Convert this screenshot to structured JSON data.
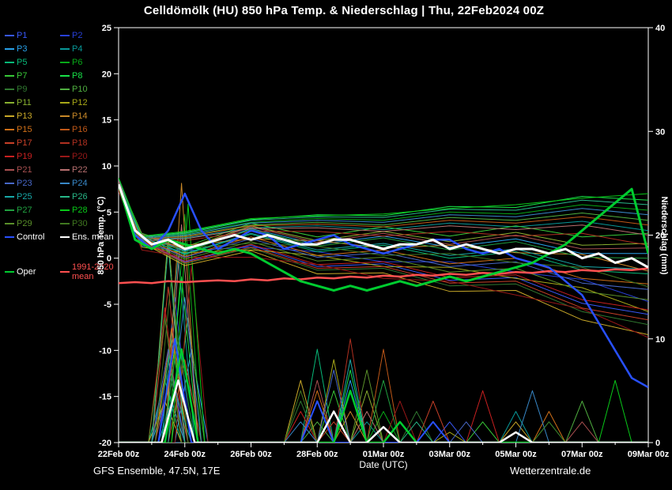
{
  "title": "Celldömölk  (HU)  850 hPa Temp. & Niederschlag | Thu, 22Feb2024 00Z",
  "footer": {
    "model_info": "GFS Ensemble, 47.5N, 17E",
    "credit": "Wetterzentrale.de"
  },
  "axes": {
    "x": {
      "label": "Date (UTC)",
      "tick_days": [
        0,
        2,
        4,
        6,
        8,
        10,
        12,
        14,
        16
      ],
      "tick_labels": [
        "22Feb 00z",
        "24Feb 00z",
        "26Feb 00z",
        "28Feb 00z",
        "01Mar 00z",
        "03Mar 00z",
        "05Mar 00z",
        "07Mar 00z",
        "09Mar 00z"
      ],
      "minor_days": [
        1,
        3,
        5,
        7,
        9,
        11,
        13,
        15
      ],
      "range_days": [
        0,
        16
      ]
    },
    "y_left": {
      "label": "850 hPa Temp. (°C)",
      "min": -20,
      "max": 25,
      "ticks": [
        -20,
        -15,
        -10,
        -5,
        0,
        5,
        10,
        15,
        20,
        25
      ]
    },
    "y_right": {
      "label": "Niederschlag (mm)",
      "min": 0,
      "max": 40,
      "ticks": [
        0,
        10,
        20,
        30,
        40
      ]
    }
  },
  "chart_data": {
    "type": "line",
    "x_unit": "days since 22Feb2024 00Z",
    "temp_unit": "°C",
    "precip_unit": "mm",
    "x_members_days": [
      0,
      0.7,
      2,
      4,
      6,
      8,
      10,
      12,
      14,
      16
    ],
    "x_key_days": [
      0,
      0.5,
      1,
      1.5,
      2,
      2.5,
      3,
      3.5,
      4,
      4.5,
      5,
      5.5,
      6,
      6.5,
      7,
      7.5,
      8,
      8.5,
      9,
      9.5,
      10,
      10.5,
      11,
      11.5,
      12,
      12.5,
      13,
      13.5,
      14,
      14.5,
      15,
      15.5,
      16
    ],
    "members": [
      {
        "label": "P1",
        "color": "#3858f8",
        "temp": [
          7.5,
          1.9,
          -0.4,
          1.4,
          -0.9,
          -0.6,
          -2.4,
          -2.1,
          -4.9,
          -6.1
        ],
        "precip_spikes": [
          [
            1.5,
            8
          ],
          [
            6,
            4
          ],
          [
            10,
            2
          ]
        ]
      },
      {
        "label": "P2",
        "color": "#2840d8",
        "temp": [
          7.7,
          1.3,
          0.8,
          1.2,
          0.7,
          -0.4,
          -0.4,
          -1.5,
          -2.3,
          -4.7
        ],
        "precip_spikes": [
          [
            1.7,
            14
          ],
          [
            6.5,
            3
          ]
        ]
      },
      {
        "label": "P3",
        "color": "#28a0e8",
        "temp": [
          8.1,
          2.5,
          0.8,
          3.2,
          1.5,
          2.4,
          1.2,
          2.1,
          0.5,
          0.5
        ],
        "precip_spikes": [
          [
            1.5,
            5
          ],
          [
            2.2,
            9
          ],
          [
            7,
            6
          ]
        ]
      },
      {
        "label": "P4",
        "color": "#089898",
        "temp": [
          8.4,
          2.0,
          2.2,
          3.3,
          3.5,
          3.1,
          3.8,
          3.4,
          4.0,
          3.0
        ],
        "precip_spikes": [
          [
            1.8,
            18
          ],
          [
            7.5,
            2
          ],
          [
            12,
            3
          ]
        ]
      },
      {
        "label": "P5",
        "color": "#08b878",
        "temp": [
          7.9,
          2.3,
          0.4,
          2.6,
          0.7,
          1.4,
          0.0,
          0.7,
          -1.3,
          -1.7
        ],
        "precip_spikes": [
          [
            1.4,
            6
          ],
          [
            6,
            9
          ],
          [
            13,
            2
          ]
        ]
      },
      {
        "label": "P6",
        "color": "#08a818",
        "temp": [
          8.6,
          2.2,
          2.6,
          3.9,
          4.3,
          4.1,
          5.0,
          4.8,
          5.8,
          5.2
        ],
        "precip_spikes": [
          [
            2,
            22
          ],
          [
            8,
            3
          ]
        ]
      },
      {
        "label": "P7",
        "color": "#38c838",
        "temp": [
          8.3,
          2.7,
          1.2,
          3.8,
          2.3,
          3.4,
          2.4,
          3.5,
          2.3,
          2.7
        ],
        "precip_spikes": [
          [
            1.6,
            10
          ],
          [
            6.5,
            5
          ],
          [
            11,
            2
          ]
        ]
      },
      {
        "label": "P8",
        "color": "#18e048",
        "temp": [
          8.7,
          2.3,
          2.8,
          4.2,
          4.7,
          4.6,
          5.6,
          5.5,
          6.7,
          6.3
        ],
        "precip_spikes": [
          [
            1.9,
            16
          ],
          [
            7,
            7
          ]
        ]
      },
      {
        "label": "P9",
        "color": "#307830",
        "temp": [
          7.4,
          1.8,
          -0.6,
          1.1,
          -1.3,
          -1.1,
          -3.0,
          -2.8,
          -5.8,
          -7.2
        ],
        "precip_spikes": [
          [
            1.5,
            7
          ],
          [
            5.5,
            4
          ],
          [
            9,
            3
          ]
        ]
      },
      {
        "label": "P10",
        "color": "#50b040",
        "temp": [
          8.5,
          2.1,
          2.4,
          3.6,
          3.9,
          3.6,
          4.4,
          4.1,
          4.9,
          4.1
        ],
        "precip_spikes": [
          [
            2.1,
            12
          ],
          [
            6,
            2
          ],
          [
            14,
            4
          ]
        ]
      },
      {
        "label": "P11",
        "color": "#88b030",
        "temp": [
          8.2,
          2.6,
          1.0,
          3.5,
          1.9,
          2.9,
          1.8,
          2.8,
          1.4,
          1.6
        ],
        "precip_spikes": [
          [
            1.5,
            20
          ],
          [
            7.5,
            5
          ]
        ]
      },
      {
        "label": "P12",
        "color": "#a8a818",
        "temp": [
          7.6,
          1.2,
          0.6,
          0.9,
          0.3,
          -0.9,
          -1.0,
          -2.2,
          -3.2,
          -5.8
        ],
        "precip_spikes": [
          [
            1.7,
            9
          ],
          [
            6.5,
            8
          ],
          [
            10,
            1
          ]
        ]
      },
      {
        "label": "P13",
        "color": "#c8a828",
        "temp": [
          7.3,
          1.7,
          -0.8,
          0.8,
          -1.7,
          -1.6,
          -3.6,
          -3.5,
          -6.7,
          -8.3
        ],
        "precip_spikes": [
          [
            1.4,
            4
          ],
          [
            5.5,
            6
          ],
          [
            12,
            2
          ]
        ]
      },
      {
        "label": "P14",
        "color": "#c88828",
        "temp": [
          8.0,
          1.6,
          1.4,
          2.1,
          1.9,
          1.1,
          1.4,
          0.6,
          0.4,
          -1.4
        ],
        "precip_spikes": [
          [
            1.9,
            25
          ],
          [
            7,
            3
          ]
        ]
      },
      {
        "label": "P15",
        "color": "#d07018",
        "temp": [
          7.8,
          2.2,
          0.2,
          2.3,
          0.3,
          0.9,
          -0.6,
          0.0,
          -2.2,
          -2.8
        ],
        "precip_spikes": [
          [
            1.6,
            11
          ],
          [
            6,
            5
          ],
          [
            13,
            3
          ]
        ]
      },
      {
        "label": "P16",
        "color": "#c05818",
        "temp": [
          8.5,
          2.1,
          2.3,
          3.5,
          3.7,
          3.4,
          4.1,
          3.8,
          4.5,
          3.6
        ],
        "precip_spikes": [
          [
            2,
            8
          ],
          [
            8,
            9
          ]
        ]
      },
      {
        "label": "P17",
        "color": "#c84028",
        "temp": [
          7.4,
          1.8,
          -0.5,
          1.2,
          -1.1,
          -0.9,
          -2.7,
          -2.5,
          -5.4,
          -6.7
        ],
        "precip_spikes": [
          [
            1.5,
            15
          ],
          [
            6.5,
            2
          ],
          [
            9.5,
            4
          ]
        ]
      },
      {
        "label": "P18",
        "color": "#b03020",
        "temp": [
          8.3,
          1.9,
          1.9,
          2.9,
          2.9,
          2.4,
          2.9,
          2.4,
          2.7,
          1.4
        ],
        "precip_spikes": [
          [
            1.8,
            6
          ],
          [
            7,
            10
          ]
        ]
      },
      {
        "label": "P19",
        "color": "#c82020",
        "temp": [
          7.5,
          1.9,
          -0.3,
          1.5,
          -0.7,
          -0.4,
          -2.1,
          -1.8,
          -4.5,
          -5.6
        ],
        "precip_spikes": [
          [
            1.4,
            13
          ],
          [
            5.5,
            3
          ],
          [
            11,
            5
          ]
        ]
      },
      {
        "label": "P20",
        "color": "#981818",
        "temp": [
          7.3,
          0.9,
          0.1,
          0.1,
          -0.7,
          -2.2,
          -2.5,
          -4.0,
          -5.5,
          -8.6
        ],
        "precip_spikes": [
          [
            2.2,
            17
          ],
          [
            8.5,
            4
          ]
        ]
      },
      {
        "label": "P21",
        "color": "#a85050",
        "temp": [
          8.2,
          2.6,
          0.9,
          3.4,
          1.7,
          2.7,
          1.5,
          2.5,
          1.0,
          1.1
        ],
        "precip_spikes": [
          [
            1.6,
            7
          ],
          [
            6,
            6
          ],
          [
            14,
            2
          ]
        ]
      },
      {
        "label": "P22",
        "color": "#b87070",
        "temp": [
          8.4,
          2.0,
          2.1,
          3.2,
          3.3,
          2.9,
          3.5,
          3.1,
          3.6,
          2.5
        ],
        "precip_spikes": [
          [
            1.9,
            21
          ],
          [
            7.5,
            3
          ]
        ]
      },
      {
        "label": "P23",
        "color": "#4868c8",
        "temp": [
          7.7,
          2.1,
          0.1,
          2.1,
          0.1,
          0.6,
          -0.9,
          -0.4,
          -2.7,
          -3.4
        ],
        "precip_spikes": [
          [
            1.5,
            9
          ],
          [
            6.5,
            7
          ],
          [
            10.5,
            2
          ]
        ]
      },
      {
        "label": "P24",
        "color": "#3888c8",
        "temp": [
          8.6,
          2.2,
          2.5,
          3.8,
          4.1,
          3.9,
          4.7,
          4.5,
          5.4,
          4.7
        ],
        "precip_spikes": [
          [
            2,
            14
          ],
          [
            5.5,
            2
          ],
          [
            12.5,
            5
          ]
        ]
      },
      {
        "label": "P25",
        "color": "#18a8a8",
        "temp": [
          7.9,
          2.3,
          0.5,
          2.7,
          0.9,
          1.6,
          0.3,
          1.0,
          -0.9,
          -1.2
        ],
        "precip_spikes": [
          [
            1.7,
            5
          ],
          [
            7,
            8
          ]
        ]
      },
      {
        "label": "P26",
        "color": "#28b888",
        "temp": [
          8.7,
          2.3,
          2.7,
          4.1,
          4.5,
          4.4,
          5.3,
          5.2,
          6.3,
          5.8
        ],
        "precip_spikes": [
          [
            1.5,
            19
          ],
          [
            6,
            4
          ],
          [
            9,
            2
          ]
        ]
      },
      {
        "label": "P27",
        "color": "#20a040",
        "temp": [
          8.1,
          2.5,
          0.7,
          3.1,
          1.3,
          2.2,
          0.9,
          1.8,
          0.1,
          0.0
        ],
        "precip_spikes": [
          [
            1.8,
            10
          ],
          [
            8,
            6
          ]
        ]
      },
      {
        "label": "P28",
        "color": "#08c818",
        "temp": [
          8.7,
          2.4,
          2.9,
          4.3,
          4.6,
          4.8,
          5.4,
          5.8,
          6.5,
          7.0
        ],
        "precip_spikes": [
          [
            2.1,
            23
          ],
          [
            6.5,
            3
          ],
          [
            15,
            6
          ]
        ]
      },
      {
        "label": "P29",
        "color": "#5a902a",
        "temp": [
          7.6,
          2.0,
          -0.1,
          1.8,
          -0.3,
          0.1,
          -1.5,
          -1.1,
          -3.6,
          -4.5
        ],
        "precip_spikes": [
          [
            1.4,
            12
          ],
          [
            7.5,
            7
          ]
        ]
      },
      {
        "label": "P30",
        "color": "#407820",
        "temp": [
          7.8,
          1.4,
          1.1,
          1.6,
          1.3,
          0.3,
          0.5,
          -0.5,
          -1.0,
          -3.1
        ],
        "precip_spikes": [
          [
            1.6,
            16
          ],
          [
            5.5,
            5
          ],
          [
            13,
            2
          ]
        ]
      }
    ],
    "key_series": [
      {
        "id": "clim",
        "label": "1991-2020 mean",
        "color": "#ff5050",
        "width": 2.5,
        "temp": [
          -2.7,
          -2.6,
          -2.7,
          -2.5,
          -2.6,
          -2.5,
          -2.4,
          -2.5,
          -2.3,
          -2.4,
          -2.2,
          -2.3,
          -2.1,
          -2.2,
          -2.0,
          -2.1,
          -1.9,
          -2.0,
          -1.8,
          -1.9,
          -1.7,
          -1.8,
          -1.6,
          -1.7,
          -1.5,
          -1.6,
          -1.4,
          -1.5,
          -1.3,
          -1.4,
          -1.2,
          -1.3,
          -1.1
        ]
      },
      {
        "id": "control",
        "label": "Control",
        "color": "#2850ff",
        "width": 2.5,
        "temp": [
          8.0,
          2.5,
          1.0,
          3.0,
          7.0,
          3.0,
          1.0,
          2.0,
          3.0,
          2.5,
          1.0,
          1.5,
          2.0,
          2.5,
          1.5,
          1.0,
          0.5,
          1.0,
          1.5,
          2.0,
          2.0,
          1.0,
          0.5,
          1.0,
          0.0,
          -0.5,
          -1.0,
          -2.5,
          -4.0,
          -7.0,
          -10.0,
          -13.0,
          -14.0
        ],
        "precip_spikes": [
          [
            1.7,
            10
          ],
          [
            6,
            4
          ],
          [
            9.5,
            2
          ]
        ]
      },
      {
        "id": "oper",
        "label": "Oper",
        "color": "#00cc30",
        "width": 3,
        "temp": [
          8.0,
          2.0,
          1.0,
          2.0,
          1.5,
          1.0,
          0.5,
          1.0,
          0.5,
          -0.5,
          -1.5,
          -2.5,
          -3.0,
          -3.5,
          -3.0,
          -3.5,
          -3.0,
          -2.5,
          -3.0,
          -2.5,
          -2.0,
          -2.5,
          -2.0,
          -1.5,
          -1.0,
          -0.5,
          0.5,
          1.5,
          3.0,
          4.5,
          6.0,
          7.5,
          0.5
        ],
        "precip_spikes": [
          [
            1.9,
            9
          ],
          [
            7,
            5
          ],
          [
            8.5,
            2
          ]
        ]
      },
      {
        "id": "ens-mean",
        "label": "Ens. mean",
        "color": "#ffffff",
        "width": 3,
        "temp": [
          8.0,
          3.0,
          1.5,
          2.0,
          1.0,
          1.5,
          2.0,
          2.5,
          2.0,
          2.5,
          2.0,
          1.5,
          1.5,
          2.0,
          2.0,
          1.5,
          1.0,
          1.5,
          1.5,
          2.0,
          1.0,
          1.5,
          1.0,
          0.5,
          1.0,
          1.0,
          0.5,
          1.0,
          0.0,
          0.5,
          -0.5,
          0.0,
          -1.0
        ],
        "precip_spikes": [
          [
            1.8,
            6
          ],
          [
            6.5,
            3
          ],
          [
            8,
            1.5
          ],
          [
            12,
            1
          ]
        ]
      }
    ]
  }
}
